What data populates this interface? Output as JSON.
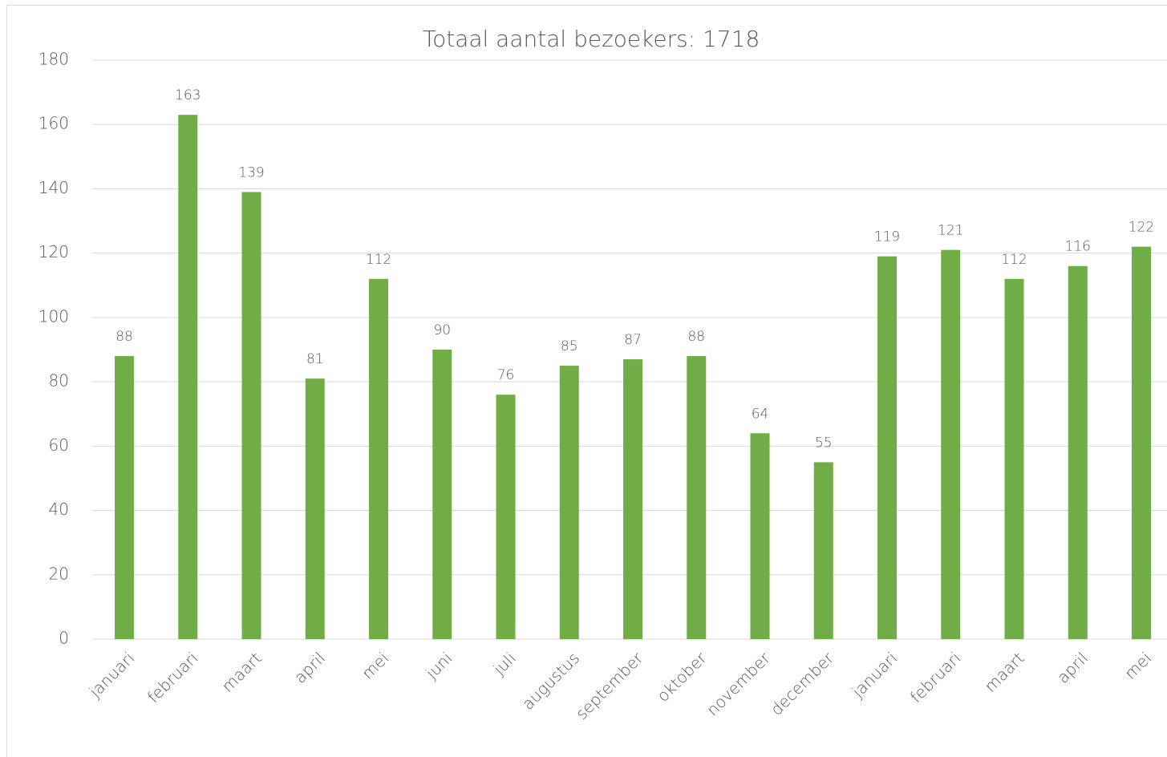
{
  "chart_data": {
    "type": "bar",
    "title": "Totaal aantal bezoekers: 1718",
    "categories": [
      "januari",
      "februari",
      "maart",
      "april",
      "mei",
      "juni",
      "juli",
      "augustus",
      "september",
      "oktober",
      "november",
      "december",
      "januari",
      "februari",
      "maart",
      "april",
      "mei"
    ],
    "values": [
      88,
      163,
      139,
      81,
      112,
      90,
      76,
      85,
      87,
      88,
      64,
      55,
      119,
      121,
      112,
      116,
      122
    ],
    "color": "#70ad47",
    "ylim": [
      0,
      180
    ],
    "yticks": [
      0,
      20,
      40,
      60,
      80,
      100,
      120,
      140,
      160,
      180
    ],
    "grid": true,
    "data_labels": true
  }
}
